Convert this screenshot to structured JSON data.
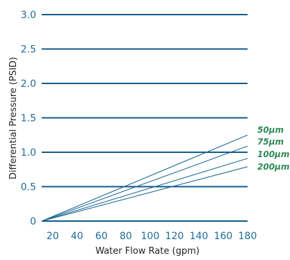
{
  "chart_data": {
    "type": "line",
    "xlabel": "Water Flow Rate (gpm)",
    "ylabel": "Differential Pressure (PSID)",
    "x_ticks": [
      20,
      40,
      60,
      80,
      100,
      120,
      140,
      160,
      180
    ],
    "y_ticks": [
      "0",
      "0.5",
      "1.0",
      "1.5",
      "2.0",
      "2.5",
      "3.0"
    ],
    "xlim": [
      11,
      180
    ],
    "ylim": [
      0,
      3.0
    ],
    "grid": "horizontal",
    "series": [
      {
        "name": "50µm",
        "x": [
          11,
          180
        ],
        "y": [
          0,
          1.25
        ]
      },
      {
        "name": "75µm",
        "x": [
          11,
          180
        ],
        "y": [
          0,
          1.09
        ]
      },
      {
        "name": "100µm",
        "x": [
          11,
          180
        ],
        "y": [
          0,
          0.91
        ]
      },
      {
        "name": "200µm",
        "x": [
          11,
          180
        ],
        "y": [
          0,
          0.79
        ]
      }
    ],
    "colors": {
      "grid": "#0f5a8c",
      "series": "#1f6a98",
      "series_label": "#2e8b57",
      "tick": "#1f6a98"
    }
  }
}
